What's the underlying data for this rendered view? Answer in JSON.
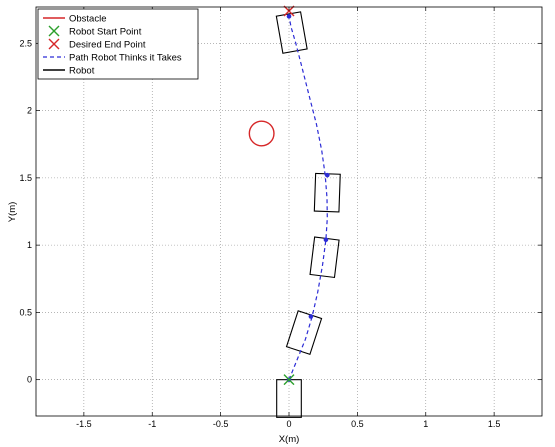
{
  "chart_data": {
    "type": "line",
    "xlabel": "X(m)",
    "ylabel": "Y(m)",
    "xlim": [
      -1.85,
      1.85
    ],
    "ylim": [
      -0.27,
      2.77
    ],
    "xticks": [
      -1.5,
      -1,
      -0.5,
      0,
      0.5,
      1,
      1.5
    ],
    "yticks": [
      0,
      0.5,
      1,
      1.5,
      2,
      2.5
    ],
    "xtick_labels": [
      "-1.5",
      "-1",
      "-0.5",
      "0",
      "0.5",
      "1",
      "1.5"
    ],
    "ytick_labels": [
      "0",
      "0.5",
      "1",
      "1.5",
      "2",
      "2.5"
    ],
    "grid": true,
    "legend_position": "top-left",
    "legend": [
      {
        "label": "Obstacle",
        "color": "#d62728",
        "style": "line"
      },
      {
        "label": "Robot Start Point",
        "color": "#2ca02c",
        "style": "x"
      },
      {
        "label": "Desired End Point",
        "color": "#d62728",
        "style": "x"
      },
      {
        "label": "Path Robot Thinks it Takes",
        "color": "#2c2cd6",
        "style": "dashed"
      },
      {
        "label": "Robot",
        "color": "#000000",
        "style": "line"
      }
    ],
    "obstacle": {
      "center": [
        -0.2,
        1.83
      ],
      "radius": 0.09,
      "color": "#d62728"
    },
    "start_point": {
      "x": 0,
      "y": 0,
      "color": "#2ca02c"
    },
    "end_point": {
      "x": 0,
      "y": 2.74,
      "color": "#d62728"
    },
    "path": {
      "color": "#2c2cd6",
      "x": [
        0,
        0.06,
        0.12,
        0.17,
        0.21,
        0.245,
        0.27,
        0.28,
        0.278,
        0.265,
        0.24,
        0.2,
        0.15,
        0.1,
        0.05,
        0.015,
        0
      ],
      "y": [
        0,
        0.15,
        0.3,
        0.47,
        0.65,
        0.85,
        1.04,
        1.2,
        1.35,
        1.52,
        1.7,
        1.9,
        2.1,
        2.3,
        2.5,
        2.62,
        2.7
      ]
    },
    "path_markers": [
      {
        "x": 0,
        "y": 0
      },
      {
        "x": 0.16,
        "y": 0.47
      },
      {
        "x": 0.27,
        "y": 1.04
      },
      {
        "x": 0.28,
        "y": 1.52
      },
      {
        "x": 0,
        "y": 2.7
      }
    ],
    "robot_poses": [
      {
        "x": 0,
        "y": -0.14,
        "angle_deg": 0
      },
      {
        "x": 0.11,
        "y": 0.35,
        "angle_deg": -18
      },
      {
        "x": 0.26,
        "y": 0.91,
        "angle_deg": -7
      },
      {
        "x": 0.28,
        "y": 1.39,
        "angle_deg": -2
      },
      {
        "x": 0.02,
        "y": 2.58,
        "angle_deg": 10
      }
    ],
    "robot_size": {
      "width": 0.18,
      "length": 0.28
    },
    "robot_color": "#000000"
  }
}
